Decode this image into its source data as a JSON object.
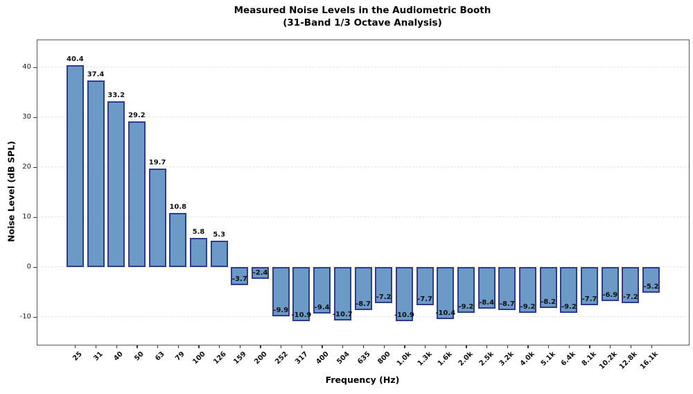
{
  "title_line1": "Measured Noise Levels in the Audiometric Booth",
  "title_line2": "(31-Band 1/3 Octave Analysis)",
  "chart_data": {
    "type": "bar",
    "title": "Measured Noise Levels in the Audiometric Booth (31-Band 1/3 Octave Analysis)",
    "xlabel": "Frequency (Hz)",
    "ylabel": "Noise Level (dB SPL)",
    "categories": [
      "25",
      "31",
      "40",
      "50",
      "63",
      "79",
      "100",
      "126",
      "159",
      "200",
      "252",
      "317",
      "400",
      "504",
      "635",
      "800",
      "1.0k",
      "1.3k",
      "1.6k",
      "2.0k",
      "2.5k",
      "3.2k",
      "4.0k",
      "5.1k",
      "6.4k",
      "8.1k",
      "10.2k",
      "12.8k",
      "16.1k"
    ],
    "values": [
      40.4,
      37.4,
      33.2,
      29.2,
      19.7,
      10.8,
      5.8,
      5.3,
      -3.7,
      -2.4,
      -9.9,
      -10.9,
      -9.4,
      -10.7,
      -8.7,
      -7.2,
      -10.9,
      -7.7,
      -10.4,
      -9.2,
      -8.4,
      -8.7,
      -9.2,
      -8.2,
      -9.2,
      -7.7,
      -6.9,
      -7.2,
      -5.2
    ],
    "value_labels_shown": true,
    "yticks": [
      -10,
      0,
      10,
      20,
      30,
      40
    ],
    "ylim": [
      -15.6,
      45.4
    ],
    "grid": "horizontal-dashed",
    "legend": "none",
    "bar_fill": "#6b9ac7",
    "bar_edge": "#2e3a94",
    "grid_color": "#e3e3e3",
    "spine_color": "#5a5a5a"
  }
}
